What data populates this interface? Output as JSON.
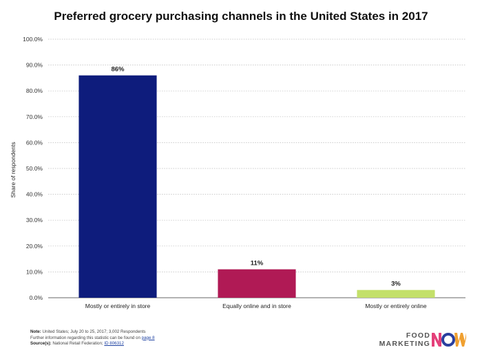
{
  "chart_data": {
    "type": "bar",
    "title": "Preferred grocery purchasing channels in the United States in 2017",
    "ylabel": "Share of respondents",
    "xlabel": "",
    "categories": [
      "Mostly or entirely in store",
      "Equally online and in store",
      "Mostly or entirely online"
    ],
    "values": [
      86,
      11,
      3
    ],
    "data_labels": [
      "86%",
      "11%",
      "3%"
    ],
    "bar_colors": [
      "#0e1c7c",
      "#b01a55",
      "#c3e06a"
    ],
    "ylim": [
      0,
      100
    ],
    "yticks": [
      0,
      10,
      20,
      30,
      40,
      50,
      60,
      70,
      80,
      90,
      100
    ],
    "ytick_labels": [
      "0.0%",
      "10.0%",
      "20.0%",
      "30.0%",
      "40.0%",
      "50.0%",
      "60.0%",
      "70.0%",
      "80.0%",
      "90.0%",
      "100.0%"
    ],
    "grid": true,
    "legend": "none"
  },
  "footer": {
    "note_label": "Note:",
    "note_text": "United States; July 20 to 25, 2017; 3,002 Respondents",
    "further_text": "Further information regarding this statistic can be found on",
    "further_link": "page 8",
    "source_label": "Source(s):",
    "source_text": "National Retail Federation;",
    "source_link": "ID 806312"
  },
  "logo": {
    "line1": "FOOD",
    "line2": "MARKETING",
    "icon": "now-logo-icon",
    "icon_colors": [
      "#e4407a",
      "#2a3f9e",
      "#f0a030"
    ]
  }
}
